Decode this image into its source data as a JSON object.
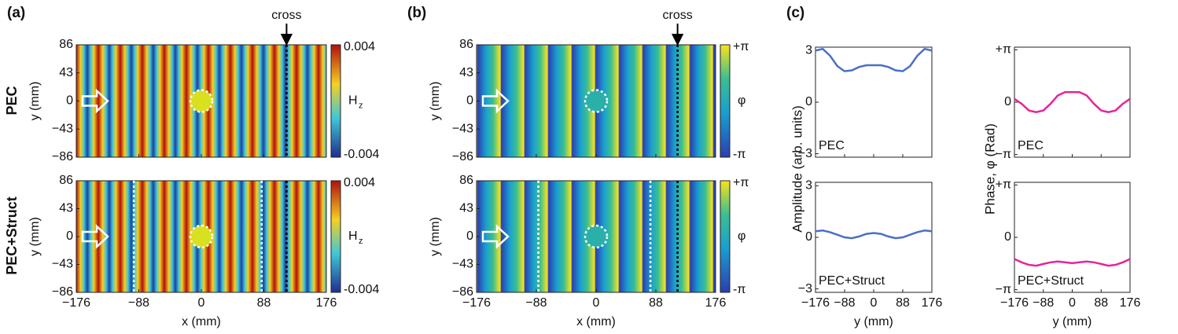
{
  "figure": {
    "panels": [
      {
        "label": "(a)",
        "annotation": "cross",
        "rows": [
          "PEC",
          "PEC+Struct"
        ],
        "xlabel": "x (mm)",
        "ylabel": "y (mm)",
        "xlim": [
          -176,
          176
        ],
        "xticks": [
          {
            "value": -176,
            "label": "−176"
          },
          {
            "value": -88,
            "label": "−88"
          },
          0,
          88,
          176
        ],
        "ylim": [
          -86,
          86
        ],
        "yticks": [
          86,
          43,
          0,
          {
            "value": -43,
            "label": "−43"
          },
          {
            "value": -86,
            "label": "−86"
          }
        ],
        "cross_x": 120,
        "struct_edges": [
          -95,
          85
        ],
        "colorbar": {
          "symbol": "H",
          "subscript": "z",
          "ticks": [
            {
              "value": 0.004,
              "label": "0.004"
            },
            {
              "value": -0.004,
              "label": "-0.004"
            }
          ]
        }
      },
      {
        "label": "(b)",
        "annotation": "cross",
        "xlabel": "x (mm)",
        "ylabel": "y (mm)",
        "xlim": [
          -176,
          176
        ],
        "xticks": [
          {
            "value": -176,
            "label": "−176"
          },
          {
            "value": -88,
            "label": "−88"
          },
          0,
          88,
          176
        ],
        "ylim": [
          -86,
          86
        ],
        "yticks": [
          86,
          43,
          0,
          {
            "value": -43,
            "label": "−43"
          },
          {
            "value": -86,
            "label": "−86"
          }
        ],
        "cross_x": 120,
        "struct_edges": [
          -85,
          80
        ],
        "colorbar": {
          "symbol": "φ",
          "ticks": [
            {
              "value": 3.1416,
              "label": "+π"
            },
            {
              "value": -3.1416,
              "label": "-π"
            }
          ]
        }
      },
      {
        "label": "(c)",
        "xlabel": "y (mm)",
        "xlim": [
          -176,
          176
        ],
        "xticks": [
          {
            "value": -176,
            "label": "−176"
          },
          {
            "value": -88,
            "label": "−88"
          },
          0,
          88,
          176
        ],
        "amplitude": {
          "ylabel": "Amplitude (arb. units)",
          "ylim": [
            -3.2,
            3.2
          ],
          "yticks": [
            3,
            0,
            {
              "value": -3,
              "label": "−3"
            }
          ],
          "color": "#4a6fc8"
        },
        "phase": {
          "ylabel": "Phase, φ (Rad)",
          "ylim": [
            -3.3,
            3.3
          ],
          "yticks": [
            {
              "value": 3.1416,
              "label": "+π"
            },
            0,
            {
              "value": -3.1416,
              "label": "−π"
            }
          ],
          "color": "#e6249b"
        },
        "x": [
          -176,
          -154,
          -132,
          -110,
          -88,
          -66,
          -44,
          -22,
          0,
          22,
          44,
          66,
          88,
          110,
          132,
          154,
          176
        ],
        "rows": [
          {
            "name": "PEC",
            "amplitude": [
              3.0,
              3.1,
              2.7,
              2.1,
              1.8,
              1.85,
              2.05,
              2.15,
              2.15,
              2.15,
              2.05,
              1.85,
              1.8,
              2.1,
              2.7,
              3.1,
              3.0
            ],
            "phase": [
              0.2,
              -0.1,
              -0.5,
              -0.6,
              -0.5,
              -0.1,
              0.4,
              0.6,
              0.6,
              0.6,
              0.4,
              -0.1,
              -0.5,
              -0.6,
              -0.5,
              -0.1,
              0.2
            ]
          },
          {
            "name": "PEC+Struct",
            "amplitude": [
              0.35,
              0.4,
              0.3,
              0.15,
              0.0,
              -0.05,
              0.05,
              0.2,
              0.25,
              0.2,
              0.05,
              -0.05,
              0.0,
              0.15,
              0.3,
              0.4,
              0.35
            ],
            "phase": [
              -1.3,
              -1.5,
              -1.65,
              -1.7,
              -1.6,
              -1.5,
              -1.45,
              -1.5,
              -1.55,
              -1.5,
              -1.45,
              -1.5,
              -1.6,
              -1.7,
              -1.65,
              -1.5,
              -1.3
            ]
          }
        ]
      }
    ]
  }
}
